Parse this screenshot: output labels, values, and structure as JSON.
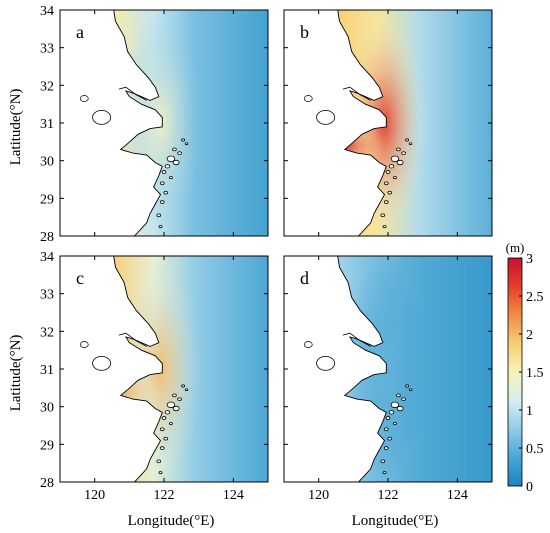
{
  "figure": {
    "ylabel": "Latitude(°N)",
    "xlabel": "Longitude(°E)",
    "x_ticks": [
      "120",
      "122",
      "124"
    ],
    "y_ticks": [
      "34",
      "33",
      "32",
      "31",
      "30",
      "29",
      "28"
    ],
    "colorbar": {
      "unit": "(m)",
      "ticks": [
        "3",
        "2.5",
        "2",
        "1.5",
        "1",
        "0.5",
        "0"
      ],
      "colors": [
        "#1b84c0",
        "#4aa6d4",
        "#8fcbe6",
        "#d8eef2",
        "#f7f2b8",
        "#f6cf74",
        "#ef8c45",
        "#e43f2b",
        "#c8102e"
      ]
    },
    "panels": [
      {
        "label": "a",
        "intensity": 0.5,
        "hotspot": "coast"
      },
      {
        "label": "b",
        "intensity": 0.95,
        "hotspot": "hangzhou-bay"
      },
      {
        "label": "c",
        "intensity": 0.7,
        "hotspot": "hangzhou-bay"
      },
      {
        "label": "d",
        "intensity": 0.18,
        "hotspot": "none"
      }
    ]
  }
}
